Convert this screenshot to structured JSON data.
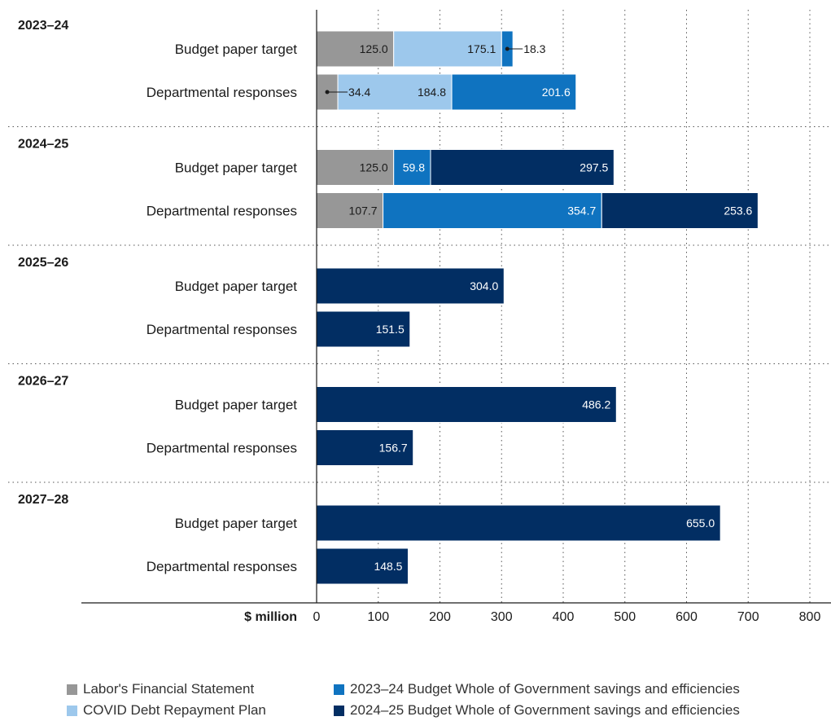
{
  "chart_data": {
    "type": "bar",
    "orientation": "horizontal",
    "stacked": true,
    "xlabel": "$ million",
    "xlim": [
      0,
      830
    ],
    "xticks": [
      0,
      100,
      200,
      300,
      400,
      500,
      600,
      700,
      800
    ],
    "grid": "vertical dotted",
    "legend_placement": "bottom",
    "series": [
      {
        "name": "Labor's Financial Statement",
        "color": "#979797"
      },
      {
        "name": "COVID Debt Repayment Plan",
        "color": "#9dc8ec"
      },
      {
        "name": "2023–24 Budget Whole of Government savings and efficiencies",
        "color": "#0f73c0"
      },
      {
        "name": "2024–25 Budget Whole of Government savings and efficiencies",
        "color": "#022e63"
      }
    ],
    "groups": [
      {
        "year": "2023–24",
        "rows": [
          {
            "label": "Budget paper target",
            "values": [
              125.0,
              175.1,
              18.3,
              0
            ]
          },
          {
            "label": "Departmental responses",
            "values": [
              34.4,
              184.8,
              201.6,
              0
            ]
          }
        ]
      },
      {
        "year": "2024–25",
        "rows": [
          {
            "label": "Budget paper target",
            "values": [
              125.0,
              0,
              59.8,
              297.5
            ]
          },
          {
            "label": "Departmental responses",
            "values": [
              107.7,
              0,
              354.7,
              253.6
            ]
          }
        ]
      },
      {
        "year": "2025–26",
        "rows": [
          {
            "label": "Budget paper target",
            "values": [
              0,
              0,
              0,
              304.0
            ]
          },
          {
            "label": "Departmental responses",
            "values": [
              0,
              0,
              0,
              151.5
            ]
          }
        ]
      },
      {
        "year": "2026–27",
        "rows": [
          {
            "label": "Budget paper target",
            "values": [
              0,
              0,
              0,
              486.2
            ]
          },
          {
            "label": "Departmental responses",
            "values": [
              0,
              0,
              0,
              156.7
            ]
          }
        ]
      },
      {
        "year": "2027–28",
        "rows": [
          {
            "label": "Budget paper target",
            "values": [
              0,
              0,
              0,
              655.0
            ]
          },
          {
            "label": "Departmental responses",
            "values": [
              0,
              0,
              0,
              148.5
            ]
          }
        ]
      }
    ],
    "callouts": [
      "2023–24 Budget paper target 18.3",
      "2023–24 Departmental responses 34.4"
    ]
  }
}
